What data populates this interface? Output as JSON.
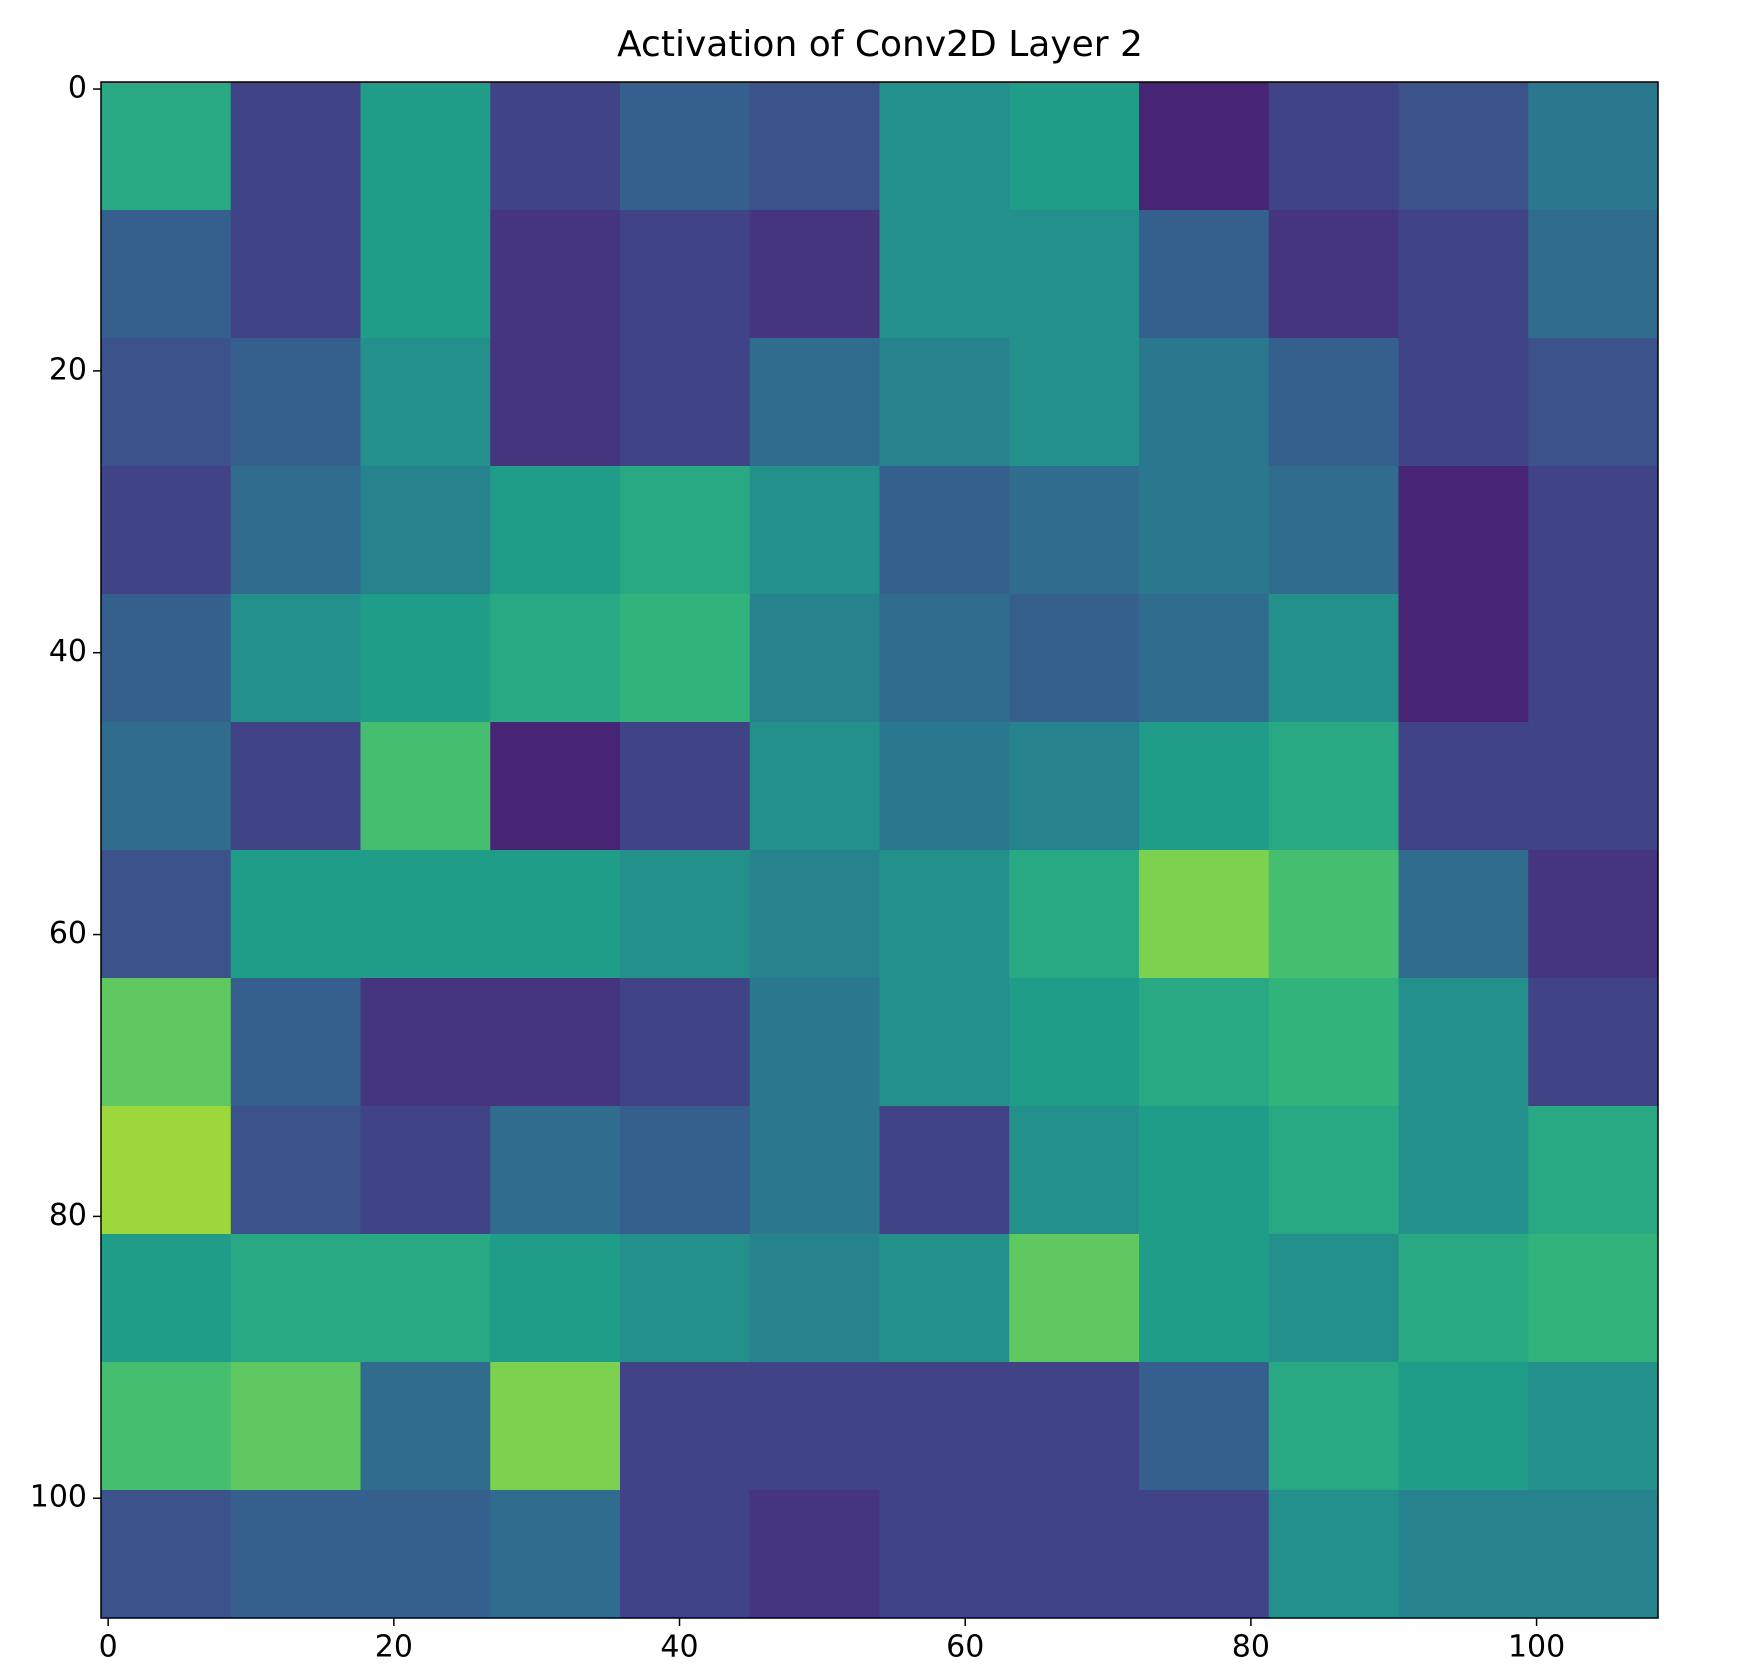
{
  "chart_data": {
    "type": "heatmap",
    "title": "Activation of Conv2D Layer 2",
    "colormap": "viridis",
    "xlim": [
      -0.5,
      108.5
    ],
    "ylim": [
      108.5,
      -0.5
    ],
    "xticks": [
      0,
      20,
      40,
      60,
      80,
      100
    ],
    "yticks": [
      0,
      20,
      40,
      60,
      80,
      100
    ],
    "zlim": [
      0,
      1
    ],
    "z": [
      [
        0.6,
        0.2,
        0.55,
        0.2,
        0.3,
        0.25,
        0.5,
        0.55,
        0.1,
        0.2,
        0.25,
        0.4
      ],
      [
        0.3,
        0.2,
        0.55,
        0.15,
        0.2,
        0.15,
        0.5,
        0.5,
        0.3,
        0.15,
        0.2,
        0.35
      ],
      [
        0.25,
        0.3,
        0.5,
        0.15,
        0.2,
        0.35,
        0.45,
        0.5,
        0.4,
        0.3,
        0.2,
        0.25
      ],
      [
        0.2,
        0.35,
        0.45,
        0.55,
        0.6,
        0.5,
        0.3,
        0.35,
        0.4,
        0.35,
        0.1,
        0.2
      ],
      [
        0.3,
        0.5,
        0.55,
        0.6,
        0.65,
        0.45,
        0.35,
        0.3,
        0.35,
        0.5,
        0.1,
        0.2
      ],
      [
        0.35,
        0.2,
        0.7,
        0.1,
        0.2,
        0.5,
        0.4,
        0.45,
        0.55,
        0.6,
        0.2,
        0.2
      ],
      [
        0.25,
        0.55,
        0.55,
        0.55,
        0.5,
        0.45,
        0.5,
        0.6,
        0.8,
        0.7,
        0.35,
        0.15
      ],
      [
        0.75,
        0.3,
        0.15,
        0.15,
        0.2,
        0.4,
        0.5,
        0.55,
        0.6,
        0.65,
        0.5,
        0.2
      ],
      [
        0.85,
        0.25,
        0.2,
        0.35,
        0.3,
        0.4,
        0.2,
        0.5,
        0.55,
        0.6,
        0.5,
        0.6
      ],
      [
        0.55,
        0.6,
        0.6,
        0.55,
        0.5,
        0.45,
        0.5,
        0.75,
        0.55,
        0.5,
        0.6,
        0.65
      ],
      [
        0.7,
        0.75,
        0.35,
        0.8,
        0.2,
        0.2,
        0.2,
        0.2,
        0.3,
        0.6,
        0.55,
        0.5
      ],
      [
        0.25,
        0.3,
        0.3,
        0.35,
        0.2,
        0.15,
        0.2,
        0.2,
        0.2,
        0.5,
        0.45,
        0.45
      ]
    ]
  }
}
